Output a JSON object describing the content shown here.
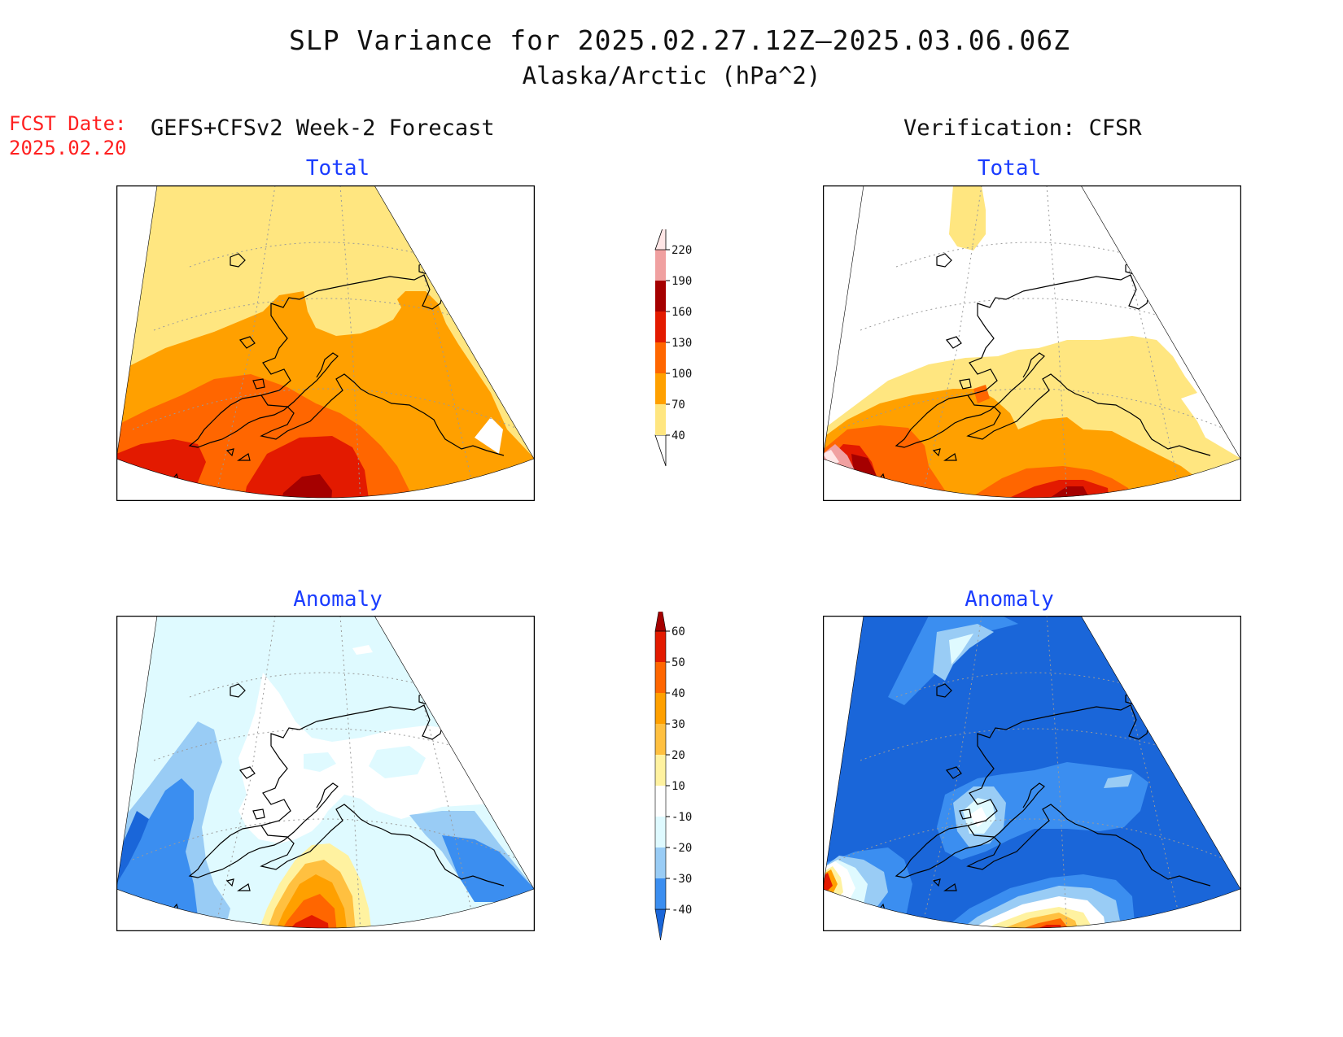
{
  "title": {
    "line1": "SLP Variance for 2025.02.27.12Z–2025.03.06.06Z",
    "line2": "Alaska/Arctic (hPa^2)"
  },
  "fcst": {
    "label": "FCST Date:",
    "date": "2025.02.20"
  },
  "columns": {
    "left": "GEFS+CFSv2 Week-2 Forecast",
    "right": "Verification: CFSR"
  },
  "panels": {
    "top_left": "Total",
    "top_right": "Total",
    "bottom_left": "Anomaly",
    "bottom_right": "Anomaly"
  },
  "colorbar_total": {
    "labels": [
      "40",
      "70",
      "100",
      "130",
      "160",
      "190",
      "220"
    ],
    "colors": [
      "#ffe680",
      "#ffa000",
      "#ff6600",
      "#e31a00",
      "#a50000",
      "#f0a0a0",
      "#ffe6e6"
    ]
  },
  "colorbar_anomaly": {
    "labels": [
      "-40",
      "-30",
      "-20",
      "-10",
      "10",
      "20",
      "30",
      "40",
      "50",
      "60"
    ],
    "colors": [
      "#1a66d9",
      "#3b8ef0",
      "#99ccf5",
      "#dffaff",
      "#ffffff",
      "#fff2a0",
      "#ffc040",
      "#ffa000",
      "#ff6600",
      "#e31a00",
      "#a50000"
    ]
  },
  "colors": {
    "fcst_red": "#ff2020",
    "panel_title_blue": "#1a3cff"
  }
}
